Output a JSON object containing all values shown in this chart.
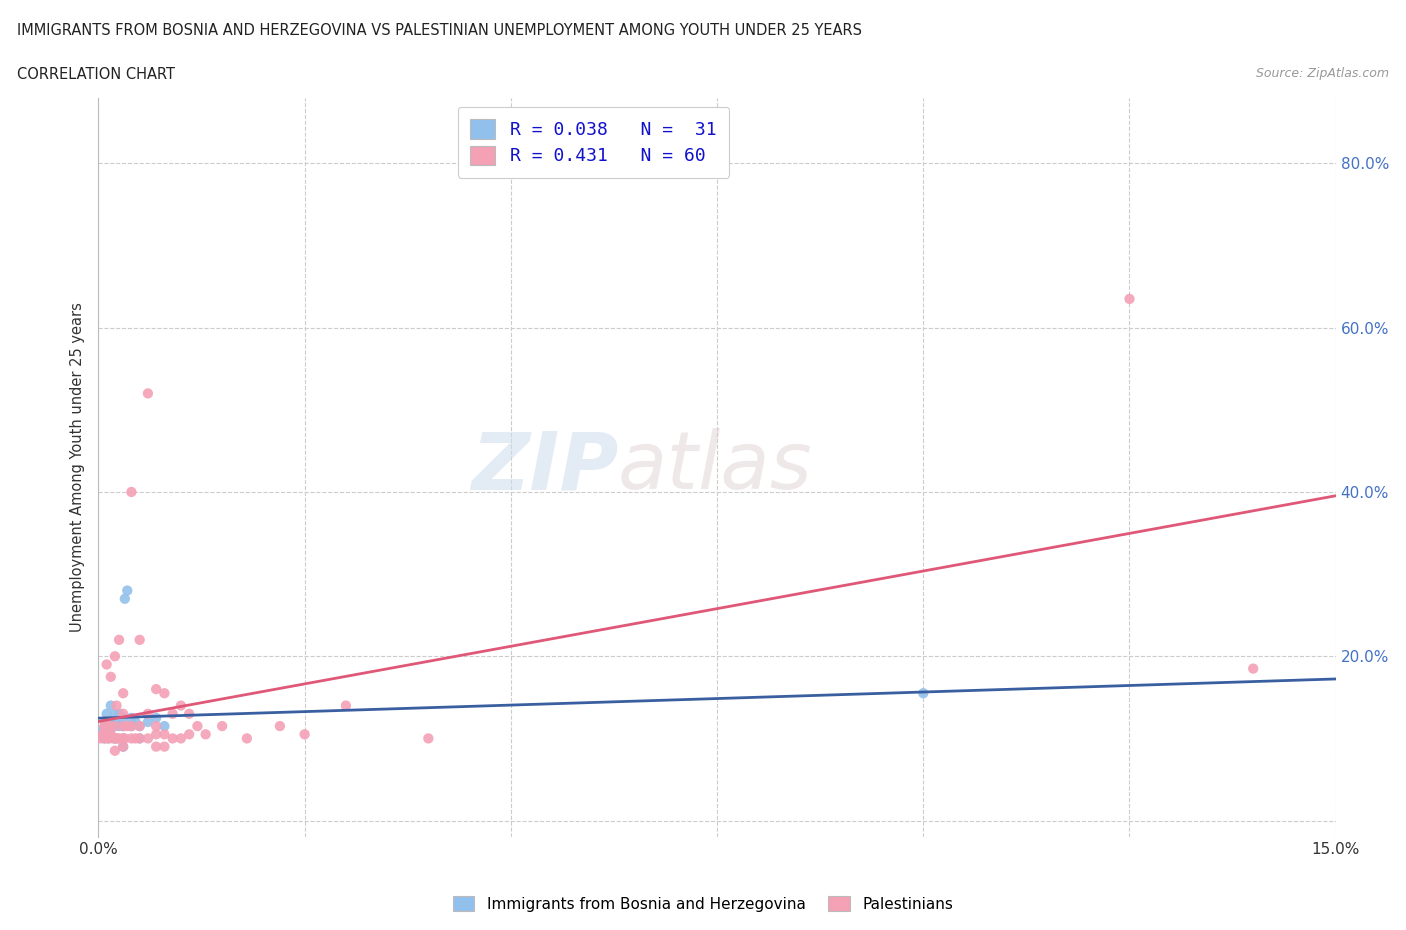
{
  "title_line1": "IMMIGRANTS FROM BOSNIA AND HERZEGOVINA VS PALESTINIAN UNEMPLOYMENT AMONG YOUTH UNDER 25 YEARS",
  "title_line2": "CORRELATION CHART",
  "source_text": "Source: ZipAtlas.com",
  "ylabel": "Unemployment Among Youth under 25 years",
  "xlim": [
    0.0,
    0.15
  ],
  "ylim": [
    -0.02,
    0.88
  ],
  "xticks": [
    0.0,
    0.025,
    0.05,
    0.075,
    0.1,
    0.125,
    0.15
  ],
  "xticklabels": [
    "0.0%",
    "",
    "",
    "",
    "",
    "",
    "15.0%"
  ],
  "ytick_positions": [
    0.0,
    0.2,
    0.4,
    0.6,
    0.8
  ],
  "yticklabels_right": [
    "",
    "20.0%",
    "40.0%",
    "60.0%",
    "80.0%"
  ],
  "watermark_zip": "ZIP",
  "watermark_atlas": "atlas",
  "legend_text1": "R = 0.038   N =  31",
  "legend_text2": "R = 0.431   N = 60",
  "color_blue": "#92C0EC",
  "color_pink": "#F4A0B5",
  "line_color_blue": "#3A5FA0",
  "line_color_pink": "#E05878",
  "grid_color": "#CCCCCC",
  "background_color": "#FFFFFF",
  "title_color": "#222222",
  "source_color": "#999999",
  "right_axis_color": "#4472C4",
  "bosnia_x": [
    0.0005,
    0.0007,
    0.0008,
    0.001,
    0.0012,
    0.0013,
    0.0015,
    0.0015,
    0.0018,
    0.002,
    0.002,
    0.002,
    0.0022,
    0.0022,
    0.0025,
    0.0025,
    0.003,
    0.003,
    0.003,
    0.003,
    0.0032,
    0.0035,
    0.004,
    0.004,
    0.0045,
    0.005,
    0.005,
    0.006,
    0.007,
    0.008,
    0.1
  ],
  "bosnia_y": [
    0.11,
    0.1,
    0.12,
    0.13,
    0.1,
    0.11,
    0.12,
    0.14,
    0.115,
    0.1,
    0.115,
    0.13,
    0.1,
    0.12,
    0.115,
    0.13,
    0.09,
    0.1,
    0.115,
    0.125,
    0.27,
    0.28,
    0.115,
    0.125,
    0.12,
    0.1,
    0.115,
    0.12,
    0.125,
    0.115,
    0.155
  ],
  "palestinians_x": [
    0.0003,
    0.0005,
    0.0007,
    0.0008,
    0.001,
    0.001,
    0.001,
    0.0012,
    0.0013,
    0.0015,
    0.0015,
    0.0017,
    0.002,
    0.002,
    0.002,
    0.002,
    0.0022,
    0.0022,
    0.0025,
    0.0025,
    0.003,
    0.003,
    0.003,
    0.003,
    0.003,
    0.0032,
    0.0035,
    0.004,
    0.004,
    0.004,
    0.0045,
    0.005,
    0.005,
    0.005,
    0.006,
    0.006,
    0.006,
    0.007,
    0.007,
    0.007,
    0.007,
    0.008,
    0.008,
    0.008,
    0.009,
    0.009,
    0.01,
    0.01,
    0.011,
    0.011,
    0.012,
    0.013,
    0.015,
    0.018,
    0.022,
    0.025,
    0.03,
    0.04,
    0.125,
    0.14
  ],
  "palestinians_y": [
    0.1,
    0.105,
    0.115,
    0.1,
    0.105,
    0.115,
    0.19,
    0.1,
    0.115,
    0.105,
    0.175,
    0.1,
    0.085,
    0.1,
    0.115,
    0.2,
    0.1,
    0.14,
    0.1,
    0.22,
    0.09,
    0.1,
    0.115,
    0.13,
    0.155,
    0.1,
    0.115,
    0.1,
    0.115,
    0.4,
    0.1,
    0.1,
    0.115,
    0.22,
    0.1,
    0.13,
    0.52,
    0.09,
    0.105,
    0.115,
    0.16,
    0.09,
    0.105,
    0.155,
    0.1,
    0.13,
    0.1,
    0.14,
    0.105,
    0.13,
    0.115,
    0.105,
    0.115,
    0.1,
    0.115,
    0.105,
    0.14,
    0.1,
    0.635,
    0.185
  ]
}
